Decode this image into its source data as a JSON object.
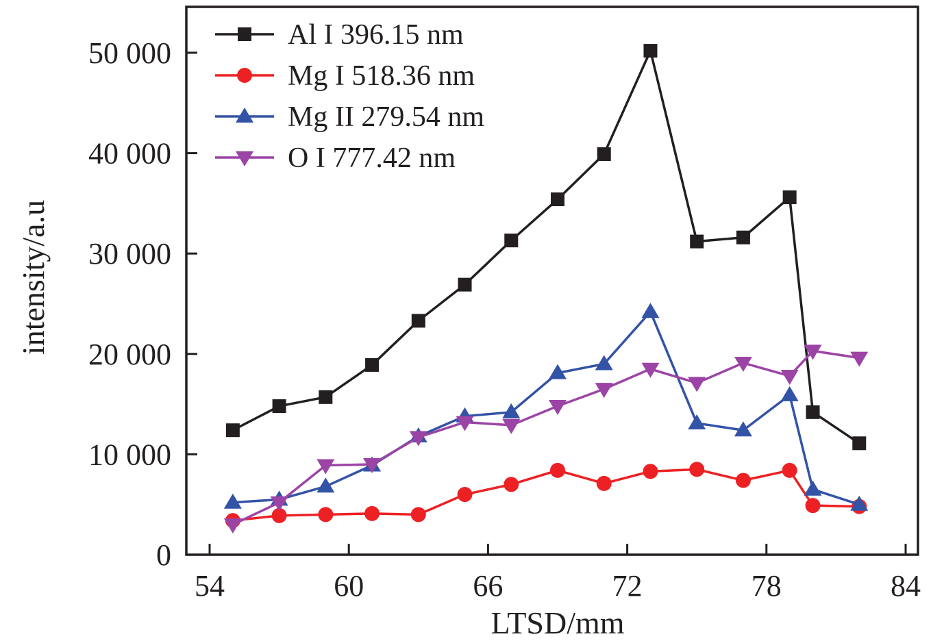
{
  "chart_data": {
    "type": "line",
    "title": "",
    "xlabel": "LTSD/mm",
    "ylabel": "intensity/a.u",
    "xlim": [
      53.1,
      84.5
    ],
    "ylim": [
      0,
      54800
    ],
    "xticks": [
      54,
      60,
      66,
      72,
      78,
      84
    ],
    "xtick_labels": [
      "54",
      "60",
      "66",
      "72",
      "78",
      "84"
    ],
    "yticks": [
      0,
      10000,
      20000,
      30000,
      40000,
      50000
    ],
    "ytick_labels": [
      "0",
      "10 000",
      "20 000",
      "30 000",
      "40 000",
      "50 000"
    ],
    "grid": false,
    "legend_position": "top-left",
    "x": [
      55,
      57,
      59,
      61,
      63,
      65,
      67,
      69,
      71,
      73,
      75,
      77,
      79,
      80,
      82
    ],
    "series": [
      {
        "name": "Al I 396.15 nm",
        "color": "#231f20",
        "marker": "square",
        "values": [
          12400,
          14800,
          15700,
          18900,
          23300,
          26900,
          31300,
          35400,
          39900,
          50200,
          31200,
          31600,
          35600,
          14200,
          11100
        ]
      },
      {
        "name": "Mg I 518.36 nm",
        "color": "#ed2124",
        "marker": "circle",
        "values": [
          3400,
          3900,
          4000,
          4100,
          4000,
          6000,
          7000,
          8400,
          7100,
          8300,
          8500,
          7400,
          8400,
          4900,
          4800
        ]
      },
      {
        "name": "Mg II 279.54 nm",
        "color": "#3353a6",
        "marker": "triangle-up",
        "values": [
          5200,
          5500,
          6800,
          8900,
          11800,
          13800,
          14200,
          18100,
          19000,
          24200,
          13100,
          12400,
          15900,
          6500,
          5000
        ]
      },
      {
        "name": "O I 777.42 nm",
        "color": "#9c44a6",
        "marker": "triangle-down",
        "values": [
          3000,
          5200,
          8900,
          9000,
          11700,
          13200,
          12900,
          14800,
          16500,
          18500,
          17100,
          19100,
          17800,
          20300,
          19600
        ]
      }
    ]
  }
}
